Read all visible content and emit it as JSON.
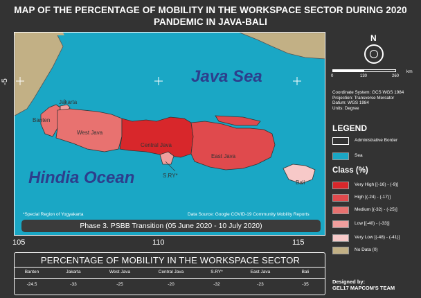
{
  "title": {
    "line1": "MAP OF THE PERCENTAGE OF MOBILITY IN THE WORKSPACE SECTOR DURING 2020",
    "line2": "PANDEMIC IN JAVA-BALI"
  },
  "map": {
    "seas": {
      "java_sea": "Java Sea",
      "hindia_ocean": "Hindia Ocean"
    },
    "provinces": {
      "jakarta": "Jakarta",
      "banten": "Banten",
      "west_java": "West Java",
      "central_java": "Central Java",
      "east_java": "East Java",
      "sry": "S.RY*",
      "bali": "Bali"
    },
    "footnote": "*Special Region of Yogyakarta",
    "data_source": "Data Source: Google COVID-19 Community Mobility Reports",
    "phase": "Phase 3. PSBB Transition (05 June 2020 - 10 July 2020)",
    "lon_ticks": [
      "105",
      "110",
      "115"
    ],
    "lat_ticks": [
      "-5"
    ]
  },
  "north_arrow": {
    "label": "N"
  },
  "scale_bar": {
    "labels": [
      "0",
      "130",
      "260"
    ],
    "unit": "km"
  },
  "coordinate_info": [
    "Coordinate System: GCS WGS 1984",
    "Projection: Transverse Mercator",
    "Datum: WGS 1984",
    "Units: Degree"
  ],
  "legend": {
    "title": "LEGEND",
    "items": [
      {
        "label": "Administrative Border",
        "color": "#333333"
      },
      {
        "label": "Sea",
        "color": "#1aa7c5"
      }
    ],
    "class_title": "Class (%)",
    "classes": [
      {
        "label": "Very High [(-16) - (-9)]",
        "color": "#d8272b"
      },
      {
        "label": "High [(-24) - (-17)]",
        "color": "#e04a4d"
      },
      {
        "label": "Medium [(-32) - (-25)]",
        "color": "#e87270"
      },
      {
        "label": "Low [(-40) - (-33)]",
        "color": "#f09e9d"
      },
      {
        "label": "Very Low [(-48) - (-41)]",
        "color": "#f7c9c8"
      },
      {
        "label": "No Data (0)",
        "color": "#c2b085"
      }
    ]
  },
  "credit": {
    "line1": "Designed by:",
    "line2": "GEL17 MAPCOM'S TEAM"
  },
  "table": {
    "title": "PERCENTAGE OF MOBILITY IN THE WORKSPACE SECTOR",
    "headers": [
      "Banten",
      "Jakarta",
      "West Java",
      "Central Java",
      "S.RY*",
      "East Java",
      "Bali"
    ],
    "values": [
      "-24.5",
      "-33",
      "-25",
      "-20",
      "-32",
      "-23",
      "-35"
    ]
  },
  "colors": {
    "background": "#333333",
    "sea": "#1aa7c5",
    "land_no_data": "#c2b085"
  }
}
